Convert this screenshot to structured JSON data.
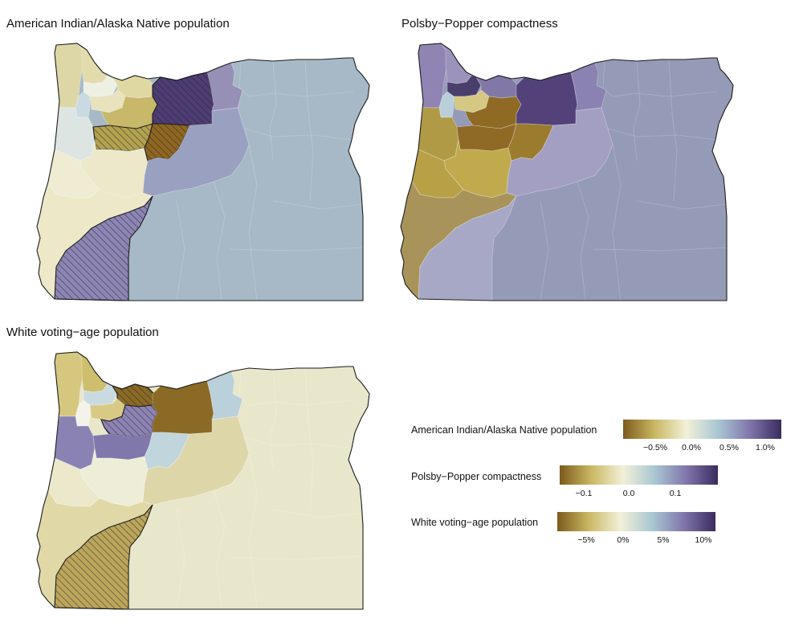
{
  "panels": [
    {
      "title": "American Indian/Alaska Native population",
      "default_fill": "#a7b9c6",
      "districts": [
        {
          "id": "nw-coast",
          "fill": "#ddd6a6",
          "hatch": false
        },
        {
          "id": "nw-inner",
          "fill": "#e2dbac",
          "hatch": false
        },
        {
          "id": "portland-core",
          "fill": "#eef0e4",
          "hatch": false
        },
        {
          "id": "portland-west",
          "fill": "#c9dbe0",
          "hatch": false
        },
        {
          "id": "portland-east",
          "fill": "#e0d8a3",
          "hatch": false
        },
        {
          "id": "portland-south",
          "fill": "#e8e2bd",
          "hatch": false
        },
        {
          "id": "clackamas",
          "fill": "#c7b86a",
          "hatch": false
        },
        {
          "id": "hood",
          "fill": "#4e3d73",
          "hatch": true
        },
        {
          "id": "gorge-east",
          "fill": "#9690b6",
          "hatch": false
        },
        {
          "id": "salem-west",
          "fill": "#dde5e3",
          "hatch": false
        },
        {
          "id": "salem",
          "fill": "#b3a24e",
          "hatch": true
        },
        {
          "id": "willamette",
          "fill": "#ece8c9",
          "hatch": false
        },
        {
          "id": "coast-mid",
          "fill": "#f0ecd3",
          "hatch": false
        },
        {
          "id": "linn",
          "fill": "#8f6620",
          "hatch": true
        },
        {
          "id": "central",
          "fill": "#9aa0bf",
          "hatch": false
        },
        {
          "id": "southwest",
          "fill": "#ede8c8",
          "hatch": false
        },
        {
          "id": "douglas",
          "fill": "#8d85b3",
          "hatch": true
        }
      ]
    },
    {
      "title": "Polsby−Popper compactness",
      "default_fill": "#959ab6",
      "districts": [
        {
          "id": "nw-coast",
          "fill": "#8f84b3",
          "hatch": false
        },
        {
          "id": "nw-inner",
          "fill": "#9c93bc",
          "hatch": false
        },
        {
          "id": "portland-core",
          "fill": "#4a3e6c",
          "hatch": false
        },
        {
          "id": "portland-west",
          "fill": "#b8cfda",
          "hatch": false
        },
        {
          "id": "portland-east",
          "fill": "#8178a8",
          "hatch": false
        },
        {
          "id": "portland-south",
          "fill": "#d4c883",
          "hatch": false
        },
        {
          "id": "clackamas",
          "fill": "#8e6a25",
          "hatch": false
        },
        {
          "id": "hood",
          "fill": "#53417a",
          "hatch": false
        },
        {
          "id": "gorge-east",
          "fill": "#8a82b0",
          "hatch": false
        },
        {
          "id": "salem-west",
          "fill": "#b09a45",
          "hatch": false
        },
        {
          "id": "salem",
          "fill": "#8e6a25",
          "hatch": false
        },
        {
          "id": "willamette",
          "fill": "#c1aa4e",
          "hatch": false
        },
        {
          "id": "coast-mid",
          "fill": "#b8a046",
          "hatch": false
        },
        {
          "id": "linn",
          "fill": "#9b7b2e",
          "hatch": false
        },
        {
          "id": "central",
          "fill": "#a29fc2",
          "hatch": false
        },
        {
          "id": "southwest",
          "fill": "#a8945a",
          "hatch": false
        },
        {
          "id": "douglas",
          "fill": "#a6a8c6",
          "hatch": false
        }
      ]
    },
    {
      "title": "White voting−age population",
      "default_fill": "#e9e7cb",
      "districts": [
        {
          "id": "nw-coast",
          "fill": "#d5c77e",
          "hatch": false
        },
        {
          "id": "nw-inner",
          "fill": "#cdbf6e",
          "hatch": false
        },
        {
          "id": "portland-core",
          "fill": "#c9dbe0",
          "hatch": false
        },
        {
          "id": "portland-west",
          "fill": "#f3f3ec",
          "hatch": false
        },
        {
          "id": "portland-east",
          "fill": "#8a6a24",
          "hatch": true
        },
        {
          "id": "portland-south",
          "fill": "#d8ca85",
          "hatch": false
        },
        {
          "id": "clackamas",
          "fill": "#8d83b3",
          "hatch": true
        },
        {
          "id": "hood",
          "fill": "#8a6a24",
          "hatch": false
        },
        {
          "id": "gorge-east",
          "fill": "#bad0da",
          "hatch": false
        },
        {
          "id": "salem-west",
          "fill": "#8b82b4",
          "hatch": false
        },
        {
          "id": "salem",
          "fill": "#8078ab",
          "hatch": false
        },
        {
          "id": "willamette",
          "fill": "#eeeed8",
          "hatch": false
        },
        {
          "id": "coast-mid",
          "fill": "#ece8cb",
          "hatch": false
        },
        {
          "id": "linn",
          "fill": "#c0d5dc",
          "hatch": false
        },
        {
          "id": "central",
          "fill": "#ddd6a9",
          "hatch": false
        },
        {
          "id": "southwest",
          "fill": "#e0d9a7",
          "hatch": false
        },
        {
          "id": "douglas",
          "fill": "#bba65a",
          "hatch": true
        }
      ]
    }
  ],
  "legends": [
    {
      "label": "American Indian/Alaska Native population",
      "gradient": [
        "#7e5a1c",
        "#c9b863",
        "#f2f0d8",
        "#a9c7d2",
        "#8176ac",
        "#3b2b5f"
      ],
      "ticks": [
        "−0.5%",
        "0.0%",
        "0.5%",
        "1.0%"
      ]
    },
    {
      "label": "Polsby−Popper compactness",
      "gradient": [
        "#7e5a1c",
        "#c9b863",
        "#f2f0d8",
        "#a9c7d2",
        "#8176ac",
        "#3b2b5f"
      ],
      "ticks": [
        "−0.1",
        "0.0",
        "0.1"
      ]
    },
    {
      "label": "White voting−age population",
      "gradient": [
        "#7e5a1c",
        "#c9b863",
        "#f2f0d8",
        "#a9c7d2",
        "#8176ac",
        "#3b2b5f"
      ],
      "ticks": [
        "−5%",
        "0%",
        "5%",
        "10%"
      ]
    }
  ]
}
